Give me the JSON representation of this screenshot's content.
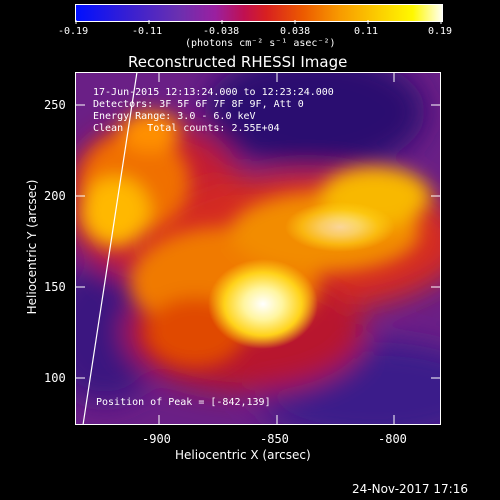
{
  "colorbar": {
    "ticks": [
      "-0.19",
      "-0.11",
      "-0.038",
      "0.038",
      "0.11",
      "0.19"
    ],
    "units": "(photons cm⁻² s⁻¹ asec⁻²)"
  },
  "plot": {
    "title": "Reconstructed RHESSI Image",
    "info": {
      "time": "17-Jun-2015 12:13:24.000 to 12:23:24.000",
      "detectors": "Detectors: 3F 5F 6F 7F 8F 9F, Att 0",
      "energy": "Energy Range: 3.0 - 6.0 keV",
      "clean": "Clean    Total counts: 2.55E+04"
    },
    "peak": "Position of Peak = [-842,139]",
    "xlabel": "Heliocentric X (arcsec)",
    "ylabel": "Heliocentric Y (arcsec)",
    "xticks": [
      "-900",
      "-850",
      "-800"
    ],
    "yticks": [
      "100",
      "150",
      "200",
      "250"
    ],
    "x_range": [
      -946,
      -790
    ],
    "y_range": [
      76,
      270
    ]
  },
  "footer": {
    "date": "24-Nov-2017 17:16"
  }
}
